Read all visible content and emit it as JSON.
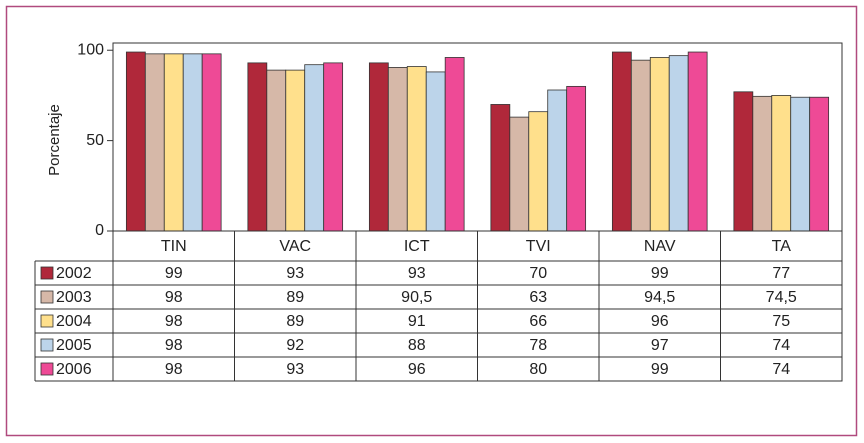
{
  "chart_data": {
    "type": "bar",
    "y_label": "Porcentaje",
    "categories": [
      "TIN",
      "VAC",
      "ICT",
      "TVI",
      "NAV",
      "TA"
    ],
    "series": [
      {
        "name": "2002",
        "color": "#b0283a",
        "values": [
          99,
          93,
          93,
          70,
          99,
          77
        ],
        "value_labels": [
          "99",
          "93",
          "93",
          "70",
          "99",
          "77"
        ]
      },
      {
        "name": "2003",
        "color": "#d6b8a8",
        "values": [
          98,
          89,
          90.5,
          63,
          94.5,
          74.5
        ],
        "value_labels": [
          "98",
          "89",
          "90,5",
          "63",
          "94,5",
          "74,5"
        ]
      },
      {
        "name": "2004",
        "color": "#ffe08c",
        "values": [
          98,
          89,
          91,
          66,
          96,
          75
        ],
        "value_labels": [
          "98",
          "89",
          "91",
          "66",
          "96",
          "75"
        ]
      },
      {
        "name": "2005",
        "color": "#bcd4ea",
        "values": [
          98,
          92,
          88,
          78,
          97,
          74
        ],
        "value_labels": [
          "98",
          "92",
          "88",
          "78",
          "97",
          "74"
        ]
      },
      {
        "name": "2006",
        "color": "#ee4a96",
        "values": [
          98,
          93,
          96,
          80,
          99,
          74
        ],
        "value_labels": [
          "98",
          "93",
          "96",
          "80",
          "99",
          "74"
        ]
      }
    ],
    "ylim": [
      0,
      104
    ],
    "yticks": [
      0,
      50,
      100
    ]
  }
}
